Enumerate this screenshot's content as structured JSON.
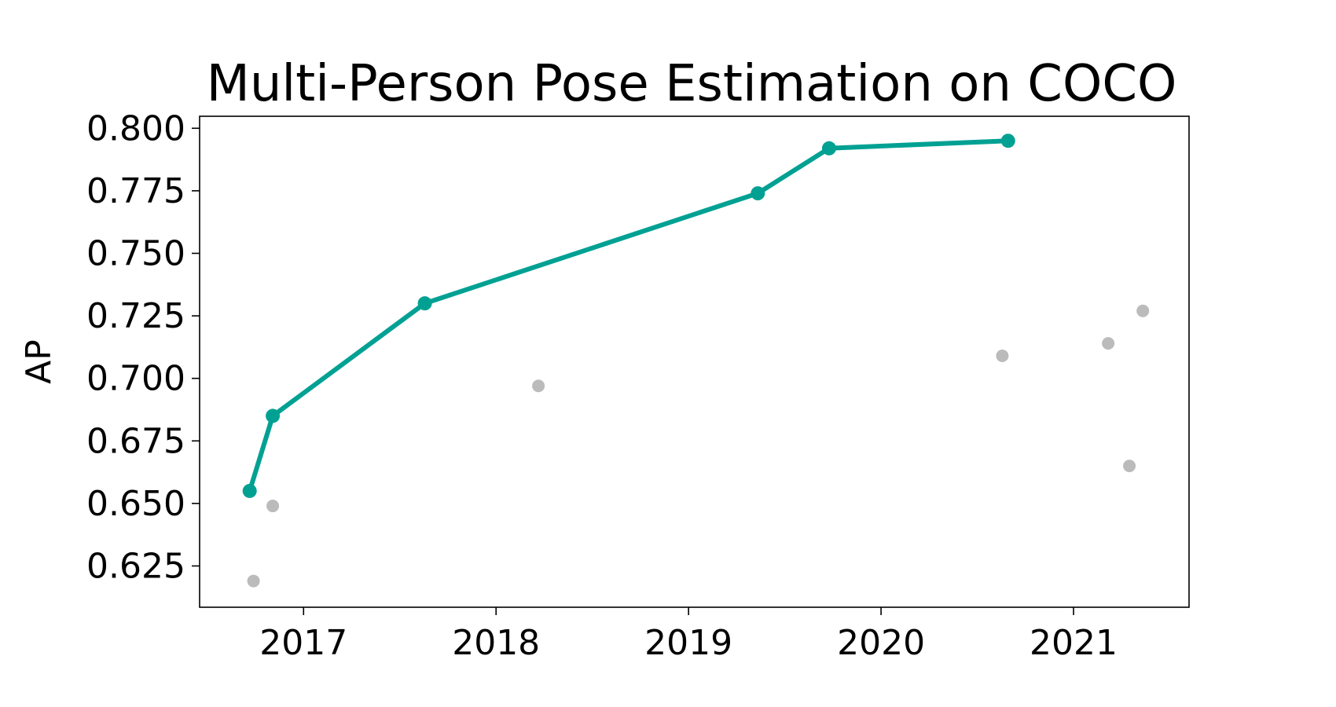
{
  "chart_data": {
    "type": "line",
    "title": "Multi-Person Pose Estimation on COCO",
    "xlabel": "",
    "ylabel": "AP",
    "xlim": [
      2016.46,
      2021.6
    ],
    "ylim": [
      0.6085,
      0.8048
    ],
    "x_ticks": [
      2017,
      2018,
      2019,
      2020,
      2021
    ],
    "x_tick_labels": [
      "2017",
      "2018",
      "2019",
      "2020",
      "2021"
    ],
    "y_ticks": [
      0.625,
      0.65,
      0.675,
      0.7,
      0.725,
      0.75,
      0.775,
      0.8
    ],
    "y_tick_labels": [
      "0.625",
      "0.650",
      "0.675",
      "0.700",
      "0.725",
      "0.750",
      "0.775",
      "0.800"
    ],
    "grid": false,
    "series": [
      {
        "role": "state-of-the-art",
        "color": "#00a193",
        "marker": "circle",
        "line": true,
        "points": [
          {
            "x": 2016.72,
            "y": 0.655
          },
          {
            "x": 2016.84,
            "y": 0.685
          },
          {
            "x": 2017.63,
            "y": 0.73
          },
          {
            "x": 2019.36,
            "y": 0.774
          },
          {
            "x": 2019.73,
            "y": 0.792
          },
          {
            "x": 2020.66,
            "y": 0.795
          }
        ]
      },
      {
        "role": "other",
        "color": "#bbbbbb",
        "marker": "circle",
        "line": false,
        "points": [
          {
            "x": 2016.74,
            "y": 0.619
          },
          {
            "x": 2016.84,
            "y": 0.649
          },
          {
            "x": 2018.22,
            "y": 0.697
          },
          {
            "x": 2020.63,
            "y": 0.709
          },
          {
            "x": 2021.18,
            "y": 0.714
          },
          {
            "x": 2021.29,
            "y": 0.665
          },
          {
            "x": 2021.36,
            "y": 0.727
          }
        ]
      }
    ]
  }
}
